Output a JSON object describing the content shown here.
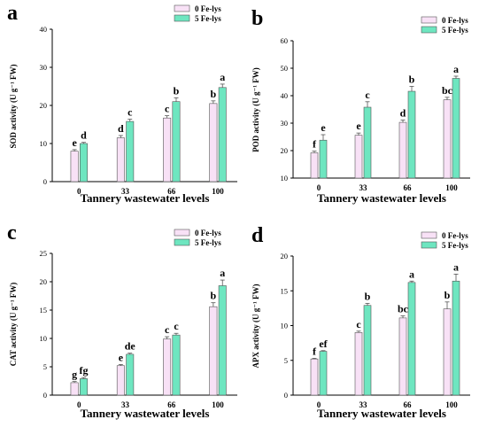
{
  "colors": {
    "fe0": "#f8e1f6",
    "fe5": "#6ee6c0",
    "stroke": "#555555",
    "axis": "#000000"
  },
  "chart_data": [
    {
      "type": "bar",
      "panel": "a",
      "categories": [
        "0",
        "33",
        "66",
        "100"
      ],
      "xlabel": "Tannery wastewater levels",
      "ylabel": "SOD activity (U g⁻¹ FW)",
      "ylim": [
        0,
        40
      ],
      "yticks": [
        0,
        10,
        20,
        30,
        40
      ],
      "legend_position": "top-right",
      "series": [
        {
          "name": "0 Fe-lys",
          "values": [
            8,
            11.5,
            16.7,
            20.5
          ],
          "errors": [
            0.4,
            0.6,
            0.6,
            0.7
          ],
          "labels": [
            "e",
            "d",
            "c",
            "b"
          ]
        },
        {
          "name": "5 Fe-lys",
          "values": [
            10,
            15.8,
            21,
            24.7
          ],
          "errors": [
            0.3,
            0.6,
            1.0,
            0.9
          ],
          "labels": [
            "d",
            "c",
            "b",
            "a"
          ]
        }
      ]
    },
    {
      "type": "bar",
      "panel": "b",
      "categories": [
        "0",
        "33",
        "66",
        "100"
      ],
      "xlabel": "Tannery wastewater levels",
      "ylabel": "POD activity (U g⁻¹ FW)",
      "ylim": [
        10,
        60
      ],
      "yticks": [
        10,
        20,
        30,
        40,
        50,
        60
      ],
      "legend_position": "top-right",
      "series": [
        {
          "name": "0 Fe-lys",
          "values": [
            19.2,
            25.6,
            30.3,
            38.5
          ],
          "errors": [
            0.6,
            0.8,
            0.8,
            0.9
          ],
          "labels": [
            "f",
            "e",
            "d",
            "bc"
          ]
        },
        {
          "name": "5 Fe-lys",
          "values": [
            23.8,
            35.8,
            41.6,
            46.3
          ],
          "errors": [
            2.0,
            2.0,
            1.8,
            0.8
          ],
          "labels": [
            "e",
            "c",
            "b",
            "a"
          ]
        }
      ]
    },
    {
      "type": "bar",
      "panel": "c",
      "categories": [
        "0",
        "33",
        "66",
        "100"
      ],
      "xlabel": "Tannery wastewater levels",
      "ylabel": "CAT activity (U g⁻¹ FW)",
      "ylim": [
        0,
        25
      ],
      "yticks": [
        0,
        5,
        10,
        15,
        20,
        25
      ],
      "legend_position": "top-right",
      "series": [
        {
          "name": "0 Fe-lys",
          "values": [
            2.2,
            5.2,
            9.9,
            15.6
          ],
          "errors": [
            0.2,
            0.2,
            0.4,
            0.7
          ],
          "labels": [
            "g",
            "e",
            "c",
            "b"
          ]
        },
        {
          "name": "5 Fe-lys",
          "values": [
            2.9,
            7.2,
            10.6,
            19.3
          ],
          "errors": [
            0.2,
            0.2,
            0.3,
            1.0
          ],
          "labels": [
            "fg",
            "de",
            "c",
            "a"
          ]
        }
      ]
    },
    {
      "type": "bar",
      "panel": "d",
      "categories": [
        "0",
        "33",
        "66",
        "100"
      ],
      "xlabel": "Tannery wastewater levels",
      "ylabel": "APX activity (U g⁻¹ FW)",
      "ylim": [
        0,
        20
      ],
      "yticks": [
        0,
        5,
        10,
        15,
        20
      ],
      "legend_position": "top-right",
      "series": [
        {
          "name": "0 Fe-lys",
          "values": [
            5.2,
            9.0,
            11.1,
            12.4
          ],
          "errors": [
            0.1,
            0.2,
            0.3,
            1.0
          ],
          "labels": [
            "f",
            "c",
            "bc",
            "b"
          ]
        },
        {
          "name": "5 Fe-lys",
          "values": [
            6.3,
            12.9,
            16.2,
            16.4
          ],
          "errors": [
            0.1,
            0.3,
            0.2,
            1.0
          ],
          "labels": [
            "ef",
            "b",
            "a",
            "a"
          ]
        }
      ]
    }
  ]
}
